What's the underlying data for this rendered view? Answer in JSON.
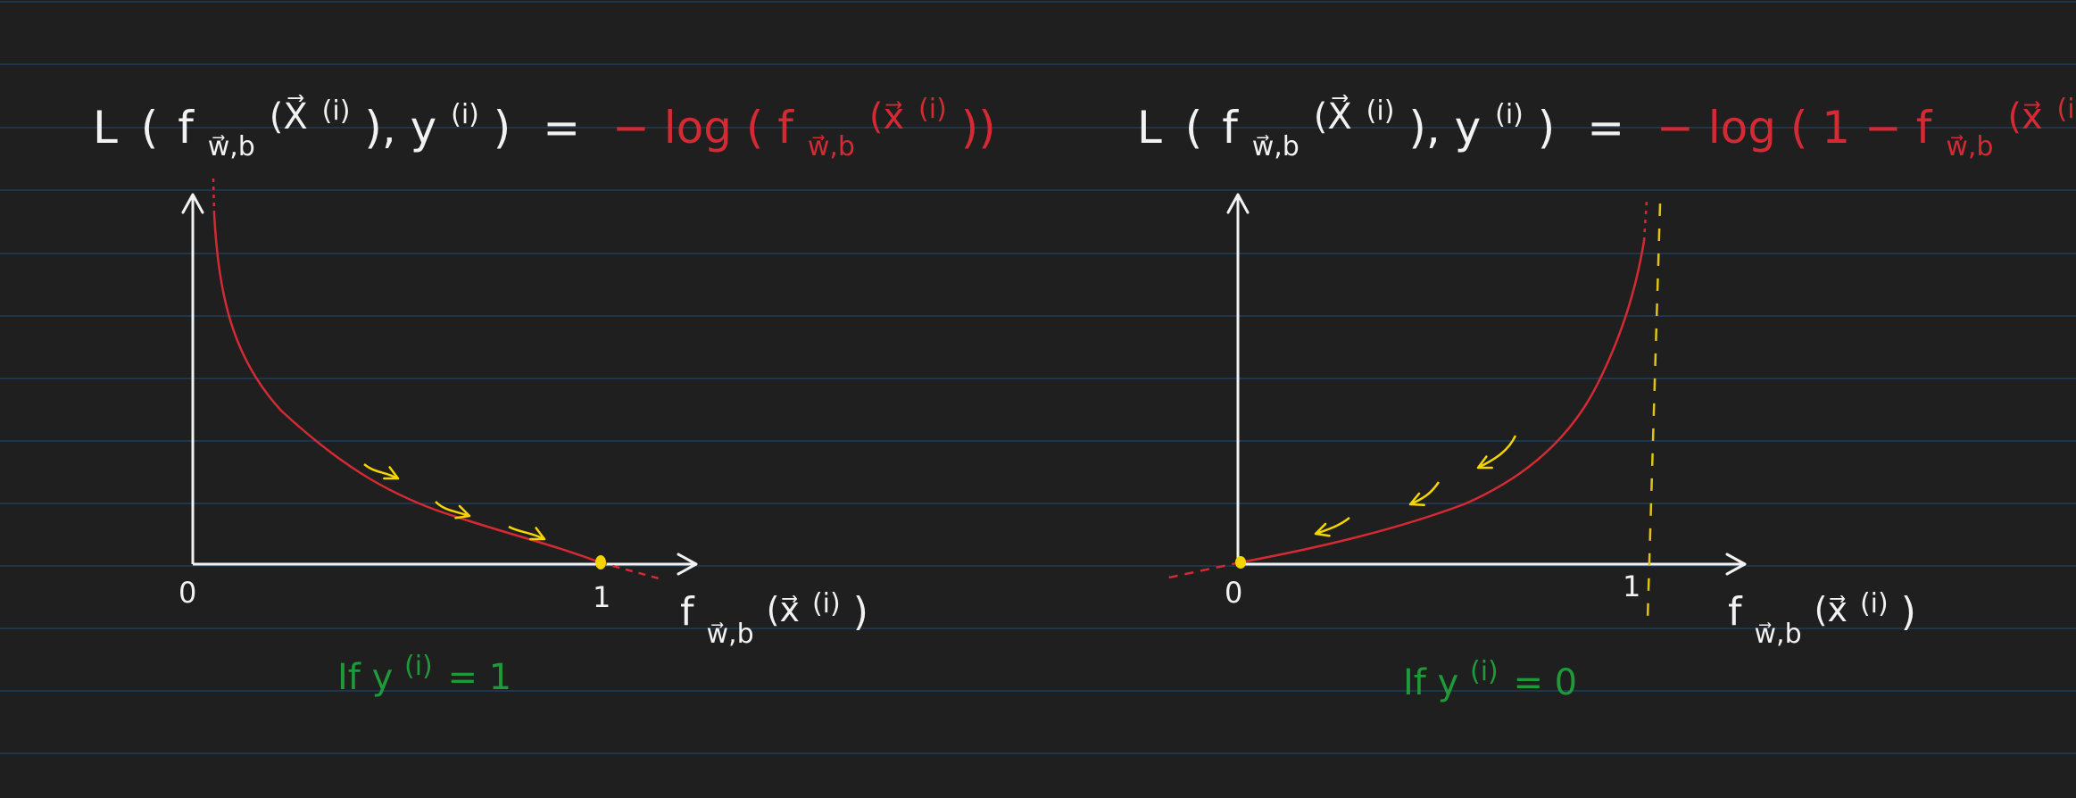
{
  "colors": {
    "background": "#1f1f1f",
    "rule_line": "#1d3f5c",
    "ink_white": "#f2f2f2",
    "ink_red": "#d42a34",
    "ink_yellow": "#f5d400",
    "ink_green": "#1f9a3a"
  },
  "left": {
    "formula": {
      "lhs_L": "L",
      "lhs_open": "(",
      "lhs_f": "f",
      "lhs_sub": "w⃗,b",
      "lhs_x": "(X⃗",
      "lhs_x_sup": "(i)",
      "lhs_close_y": "), y",
      "lhs_y_sup": "(i)",
      "lhs_end": ")",
      "equals": "=",
      "rhs_prefix": "− log ( f",
      "rhs_sub": "w⃗,b",
      "rhs_x": "(x⃗",
      "rhs_x_sup": "(i)",
      "rhs_end": "))"
    },
    "origin_label": "0",
    "one_label": "1",
    "x_axis_label": {
      "f": "f",
      "sub": "w⃗,b",
      "x": "(x⃗",
      "sup": "(i)",
      "end": ")"
    },
    "condition": {
      "prefix": "If  y",
      "sup": "(i)",
      "suffix": "= 1"
    }
  },
  "right": {
    "formula": {
      "lhs_L": "L",
      "lhs_open": "(",
      "lhs_f": "f",
      "lhs_sub": "w⃗,b",
      "lhs_x": "(X⃗",
      "lhs_x_sup": "(i)",
      "lhs_close_y": "), y",
      "lhs_y_sup": "(i)",
      "lhs_end": ")",
      "equals": "=",
      "rhs_prefix": "− log ( 1 − f",
      "rhs_sub": "w⃗,b",
      "rhs_x": "(x⃗",
      "rhs_x_sup": "(i)",
      "rhs_end": "))"
    },
    "origin_label": "0",
    "one_label": "1",
    "x_axis_label": {
      "f": "f",
      "sub": "w⃗,b",
      "x": "(x⃗",
      "sup": "(i)",
      "end": ")"
    },
    "condition": {
      "prefix": "If  y",
      "sup": "(i)",
      "suffix": "= 0"
    }
  }
}
